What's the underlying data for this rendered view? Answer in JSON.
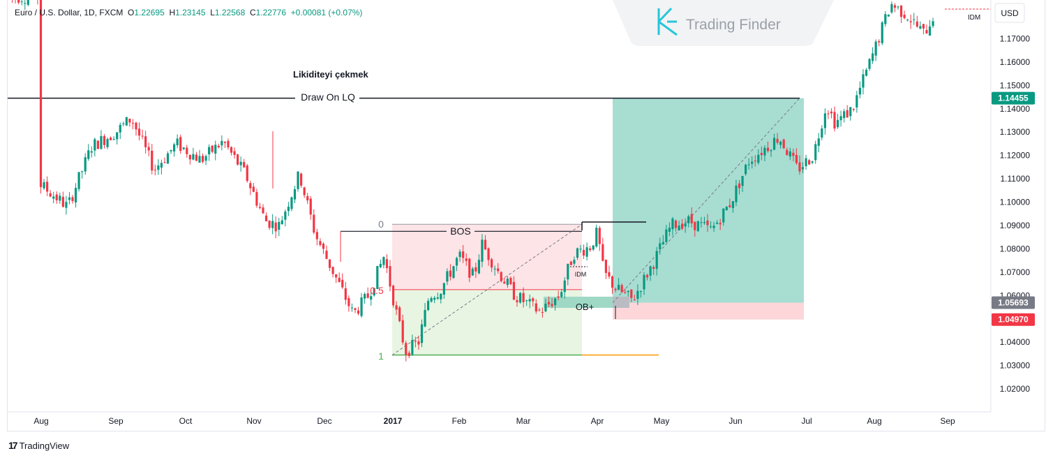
{
  "legend": {
    "symbol": "Euro / U.S. Dollar, 1D, FXCM",
    "open_label": "O",
    "open": "1.22695",
    "high_label": "H",
    "high": "1.23145",
    "low_label": "L",
    "low": "1.22568",
    "close_label": "C",
    "close": "1.22776",
    "change": "+0.00081 (+0.07%)"
  },
  "watermark": {
    "brand": "Trading Finder"
  },
  "footer": {
    "brand": "TradingView"
  },
  "currency": "USD",
  "colors": {
    "up": "#089981",
    "down": "#f23645",
    "tp_zone": "#a8ddd2",
    "sl_zone": "#fcd6d9",
    "ob": "#9fd9c6",
    "fib_upper": "#fde4e6",
    "fib_lower": "#e8f5e3",
    "grid": "#f0f3fa"
  },
  "chart_data": {
    "type": "candlestick",
    "symbol": "EUR/USD",
    "timeframe": "1D",
    "x_labels": [
      "Aug",
      "Sep",
      "Oct",
      "Nov",
      "Dec",
      "2017",
      "Feb",
      "Mar",
      "Apr",
      "May",
      "Jun",
      "Jul",
      "Aug",
      "Sep"
    ],
    "y_ticks": [
      "1.17000",
      "1.16000",
      "1.15000",
      "1.14000",
      "1.13000",
      "1.12000",
      "1.11000",
      "1.10000",
      "1.09000",
      "1.08000",
      "1.07000",
      "1.06000",
      "1.05000",
      "1.04000",
      "1.03000",
      "1.02000"
    ],
    "ylim": [
      1.013,
      1.19
    ],
    "price_badges": [
      {
        "label": "1.14455",
        "value": 1.14455,
        "color": "#089981"
      },
      {
        "label": "1.05693",
        "value": 1.05693,
        "color": "#787b86"
      },
      {
        "label": "1.04970",
        "value": 1.0497,
        "color": "#f23645"
      }
    ],
    "price_path": [
      [
        "Jul 31",
        1.108
      ],
      [
        "Aug 12",
        1.098
      ],
      [
        "Aug 22",
        1.124
      ],
      [
        "Sep 1",
        1.13
      ],
      [
        "Sep 8",
        1.136
      ],
      [
        "Sep 18",
        1.114
      ],
      [
        "Sep 28",
        1.125
      ],
      [
        "Oct 8",
        1.118
      ],
      [
        "Oct 18",
        1.126
      ],
      [
        "Oct 28",
        1.112
      ],
      [
        "Nov 6",
        1.092
      ],
      [
        "Nov 12",
        1.09
      ],
      [
        "Nov 21",
        1.112
      ],
      [
        "Nov 28",
        1.086
      ],
      [
        "Dec 7",
        1.066
      ],
      [
        "Dec 14",
        1.052
      ],
      [
        "Dec 21",
        1.06
      ],
      [
        "Dec 28",
        1.077
      ],
      [
        "Jan 3",
        1.051
      ],
      [
        "Jan 7",
        1.036
      ],
      [
        "Jan 13",
        1.04
      ],
      [
        "Jan 18",
        1.06
      ],
      [
        "Jan 23",
        1.062
      ],
      [
        "Feb 1",
        1.077
      ],
      [
        "Feb 8",
        1.068
      ],
      [
        "Feb 12",
        1.082
      ],
      [
        "Feb 20",
        1.07
      ],
      [
        "Feb 28",
        1.06
      ],
      [
        "Mar 8",
        1.053
      ],
      [
        "Mar 16",
        1.06
      ],
      [
        "Mar 22",
        1.078
      ],
      [
        "Mar 29",
        1.081
      ],
      [
        "Apr 1",
        1.087
      ],
      [
        "Apr 4",
        1.07
      ],
      [
        "Apr 10",
        1.063
      ],
      [
        "Apr 18",
        1.058
      ],
      [
        "Apr 28",
        1.074
      ],
      [
        "May 5",
        1.09
      ],
      [
        "May 12",
        1.092
      ],
      [
        "May 22",
        1.088
      ],
      [
        "May 30",
        1.1
      ],
      [
        "Jun 7",
        1.118
      ],
      [
        "Jun 15",
        1.124
      ],
      [
        "Jun 20",
        1.128
      ],
      [
        "Jun 28",
        1.114
      ],
      [
        "Jul 4",
        1.12
      ],
      [
        "Jul 10",
        1.142
      ],
      [
        "Jul 14",
        1.134
      ],
      [
        "Jul 22",
        1.14
      ],
      [
        "Aug 1",
        1.165
      ],
      [
        "Aug 8",
        1.185
      ],
      [
        "Aug 15",
        1.18
      ],
      [
        "Aug 22",
        1.172
      ],
      [
        "Aug 30",
        1.188
      ]
    ],
    "annotations": {
      "title_text": "Likiditeyi çekmek",
      "draw_line": {
        "label": "Draw On LQ",
        "value": 1.14455
      },
      "bos": {
        "label": "BOS",
        "value": 1.0875
      },
      "fib_levels": [
        {
          "label": "0",
          "value": 1.0905
        },
        {
          "label": "0.5",
          "value": 1.0625
        },
        {
          "label": "1",
          "value": 1.0345
        }
      ],
      "order_block": {
        "label": "OB+",
        "top": 1.0595,
        "bottom": 1.0575
      },
      "idm_labels": [
        "IDM",
        "IDM"
      ],
      "trade": {
        "target": 1.14455,
        "entry": 1.05693,
        "stop": 1.0497
      }
    }
  }
}
